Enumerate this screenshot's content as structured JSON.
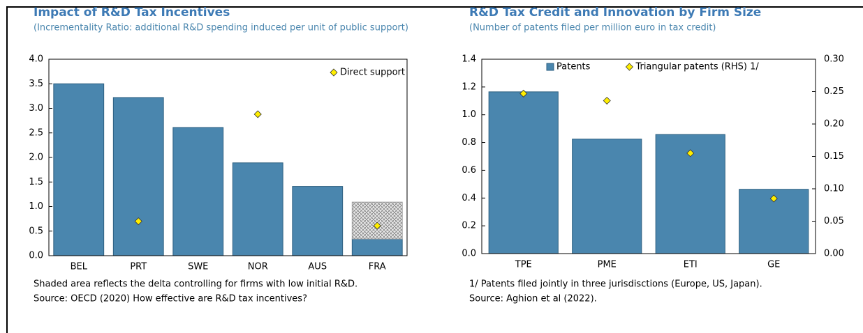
{
  "chart_data": [
    {
      "type": "bar",
      "title": "Impact of R&D Tax Incentives",
      "subtitle": "(Incrementality Ratio: additional R&D spending induced per unit of public support)",
      "categories": [
        "BEL",
        "PRT",
        "SWE",
        "NOR",
        "AUS",
        "FRA"
      ],
      "series": [
        {
          "type": "bar",
          "color": "#4a86ae",
          "values": [
            3.5,
            3.22,
            2.61,
            1.89,
            1.41,
            0.34
          ]
        },
        {
          "type": "bar",
          "hatch": true,
          "color": "#9a9a9a",
          "values": [
            null,
            null,
            null,
            null,
            null,
            0.75
          ]
        },
        {
          "type": "scatter",
          "name": "Direct support",
          "color": "#ffee00",
          "values": [
            null,
            0.7,
            null,
            2.88,
            null,
            0.61
          ]
        }
      ],
      "ylim": [
        0,
        4
      ],
      "yticks": [
        {
          "value": 0,
          "label": "0.0"
        },
        0.5,
        {
          "value": 1,
          "label": "1.0"
        },
        1.5,
        {
          "value": 2,
          "label": "2.0"
        },
        2.5,
        {
          "value": 3,
          "label": "3.0"
        },
        3.5,
        {
          "value": 4,
          "label": "4.0"
        }
      ],
      "legend": "top-right",
      "notes": [
        "Shaded area reflects the delta controlling for firms with low initial R&D.",
        "Source: OECD (2020) How effective are R&D tax incentives?"
      ]
    },
    {
      "type": "bar",
      "title": "R&D Tax Credit and Innovation by Firm Size",
      "subtitle": "(Number of patents filed per million euro in tax credit)",
      "categories": [
        "TPE",
        "PME",
        "ETI",
        "GE"
      ],
      "series": [
        {
          "type": "bar",
          "name": "Patents",
          "color": "#4a86ae",
          "values": [
            1.165,
            0.825,
            0.858,
            0.463
          ]
        },
        {
          "type": "scatter",
          "name": "Triangular patents (RHS) 1/",
          "color": "#ffee00",
          "axis": "y2",
          "values": [
            0.247,
            0.236,
            0.155,
            0.085
          ]
        }
      ],
      "ylim": [
        0,
        1.4
      ],
      "yticks": [
        {
          "value": 0,
          "label": "0.0"
        },
        0.2,
        0.4,
        0.6,
        0.8,
        {
          "value": 1,
          "label": "1.0"
        },
        1.2,
        1.4
      ],
      "y2lim": [
        0,
        0.3
      ],
      "y2ticks": [
        {
          "value": 0,
          "label": "0.00"
        },
        0.05,
        {
          "value": 0.1,
          "label": "0.10"
        },
        0.15,
        {
          "value": 0.2,
          "label": "0.20"
        },
        0.25,
        {
          "value": 0.3,
          "label": "0.30"
        }
      ],
      "legend": "top",
      "notes": [
        "1/ Patents filed jointly in three jurisdisctions (Europe, US, Japan).",
        "Source: Aghion et al (2022)."
      ]
    }
  ]
}
